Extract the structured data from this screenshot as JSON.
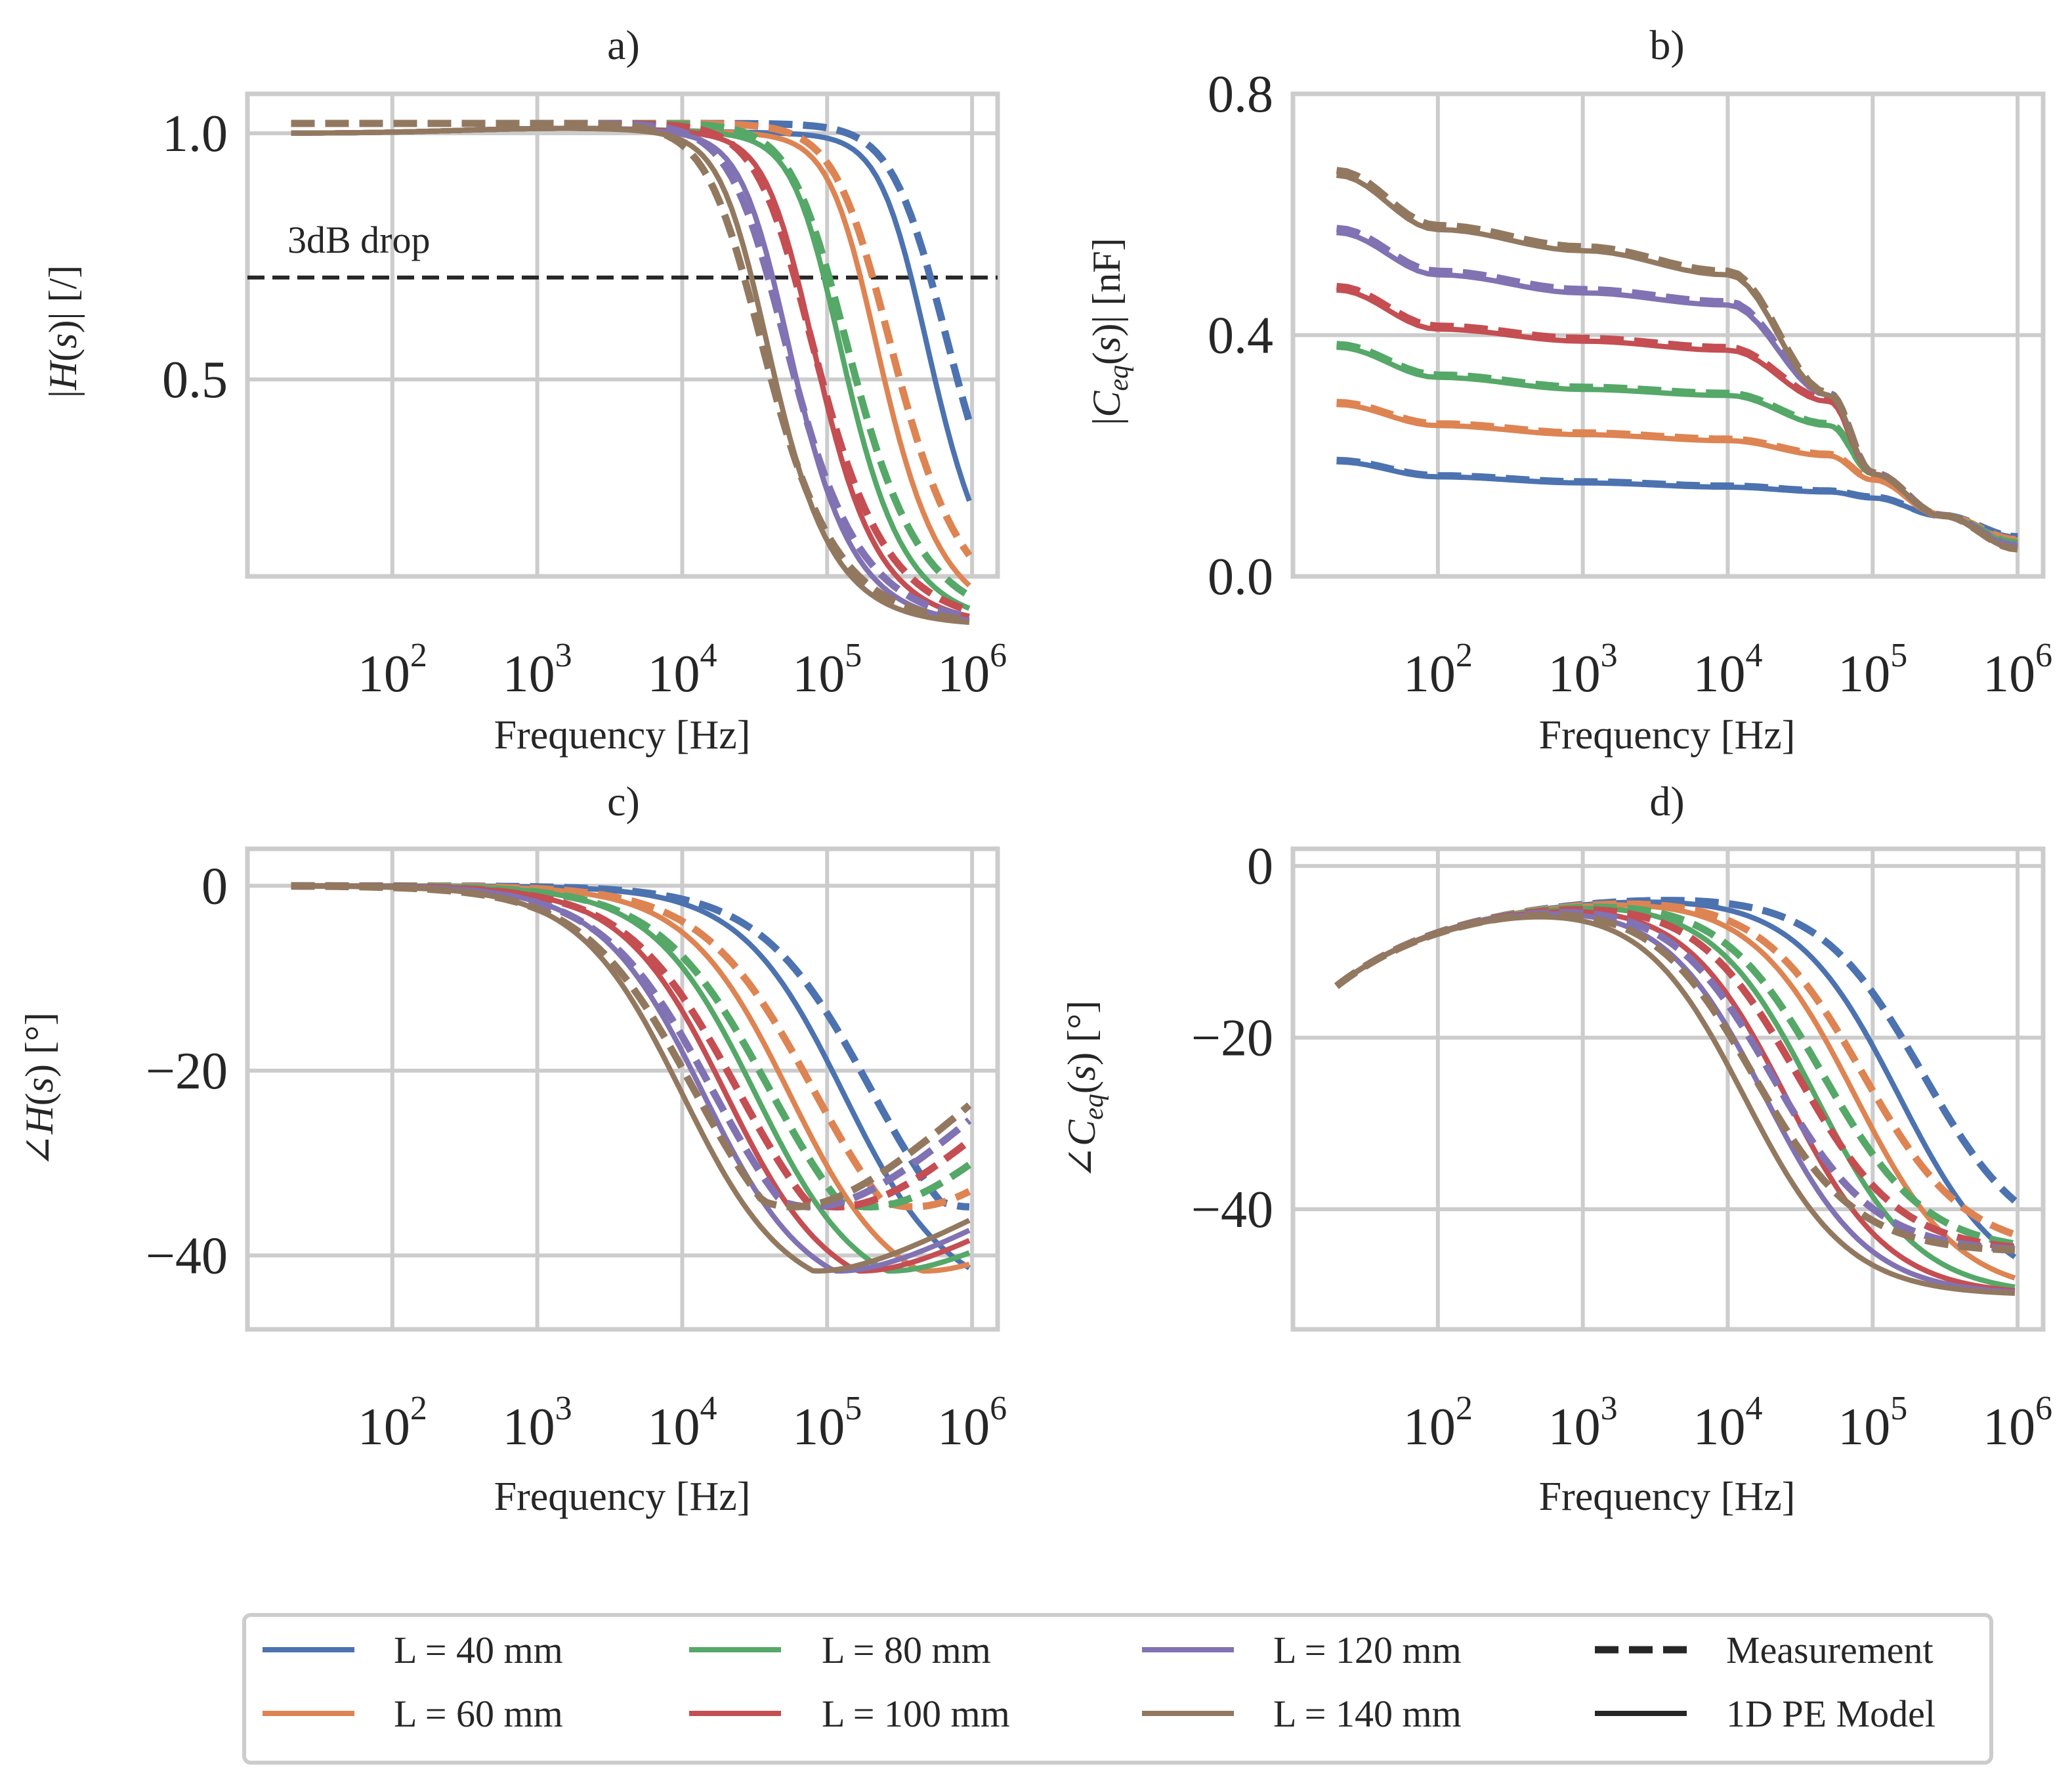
{
  "chart_data": [
    {
      "panel": "a)",
      "type": "line",
      "title": "a)",
      "xlabel": "Frequency [Hz]",
      "ylabel": "|H(s)| [/]",
      "xscale": "log",
      "xlim": [
        10,
        1500000
      ],
      "ylim": [
        0.1,
        1.08
      ],
      "x_ticks": [
        100,
        1000,
        10000,
        100000,
        1000000
      ],
      "x_tick_labels": [
        "10^2",
        "10^3",
        "10^4",
        "10^5",
        "10^6"
      ],
      "y_ticks": [
        0.5,
        1.0
      ],
      "y_tick_labels": [
        "0.5",
        "1.0"
      ],
      "grid": true,
      "annotations": [
        {
          "text": "3dB drop",
          "hline_y": 0.707
        }
      ],
      "model_fc": [
        {
          "name": "L = 40 mm",
          "fc": 380000
        },
        {
          "name": "L = 60 mm",
          "fc": 170000
        },
        {
          "name": "L = 80 mm",
          "fc": 95000
        },
        {
          "name": "L = 100 mm",
          "fc": 62000
        },
        {
          "name": "L = 120 mm",
          "fc": 42000
        },
        {
          "name": "L = 140 mm",
          "fc": 30000
        }
      ],
      "measurement_fc": [
        {
          "name": "L = 40 mm",
          "fc": 500000
        },
        {
          "name": "L = 60 mm",
          "fc": 200000
        },
        {
          "name": "L = 80 mm",
          "fc": 100000
        },
        {
          "name": "L = 100 mm",
          "fc": 58000
        },
        {
          "name": "L = 120 mm",
          "fc": 38000
        },
        {
          "name": "L = 140 mm",
          "fc": 26000
        }
      ]
    },
    {
      "panel": "b)",
      "type": "line",
      "title": "b)",
      "xlabel": "Frequency [Hz]",
      "ylabel": "|Ceq(s)| [nF]",
      "xscale": "log",
      "xlim": [
        10,
        1500000
      ],
      "ylim": [
        0.0,
        0.8
      ],
      "x_ticks": [
        100,
        1000,
        10000,
        100000,
        1000000
      ],
      "x_tick_labels": [
        "10^2",
        "10^3",
        "10^4",
        "10^5",
        "10^6"
      ],
      "y_ticks": [
        0.0,
        0.4,
        0.8
      ],
      "y_tick_labels": [
        "0.0",
        "0.4",
        "0.8"
      ],
      "grid": true,
      "series": [
        {
          "name": "L = 40 mm",
          "x": [
            20,
            100,
            1000,
            10000,
            50000,
            100000,
            300000,
            1000000
          ],
          "y": [
            0.19,
            0.165,
            0.155,
            0.148,
            0.14,
            0.13,
            0.1,
            0.065
          ]
        },
        {
          "name": "L = 60 mm",
          "x": [
            20,
            100,
            1000,
            10000,
            50000,
            100000,
            300000,
            1000000
          ],
          "y": [
            0.285,
            0.25,
            0.235,
            0.225,
            0.2,
            0.16,
            0.1,
            0.06
          ]
        },
        {
          "name": "L = 80 mm",
          "x": [
            20,
            100,
            1000,
            10000,
            50000,
            100000,
            300000,
            1000000
          ],
          "y": [
            0.38,
            0.33,
            0.31,
            0.3,
            0.25,
            0.17,
            0.1,
            0.055
          ]
        },
        {
          "name": "L = 100 mm",
          "x": [
            20,
            100,
            1000,
            10000,
            50000,
            100000,
            300000,
            1000000
          ],
          "y": [
            0.475,
            0.41,
            0.39,
            0.375,
            0.29,
            0.17,
            0.1,
            0.05
          ]
        },
        {
          "name": "L = 120 mm",
          "x": [
            20,
            100,
            1000,
            10000,
            50000,
            100000,
            300000,
            1000000
          ],
          "y": [
            0.57,
            0.5,
            0.47,
            0.45,
            0.3,
            0.17,
            0.1,
            0.05
          ]
        },
        {
          "name": "L = 140 mm",
          "x": [
            20,
            100,
            1000,
            10000,
            50000,
            100000,
            300000,
            1000000
          ],
          "y": [
            0.665,
            0.575,
            0.54,
            0.5,
            0.3,
            0.17,
            0.1,
            0.045
          ]
        }
      ]
    },
    {
      "panel": "c)",
      "type": "line",
      "title": "c)",
      "xlabel": "Frequency [Hz]",
      "ylabel": "∠H(s) [°]",
      "xscale": "log",
      "xlim": [
        10,
        1500000
      ],
      "ylim": [
        -48,
        4
      ],
      "x_ticks": [
        100,
        1000,
        10000,
        100000,
        1000000
      ],
      "x_tick_labels": [
        "10^2",
        "10^3",
        "10^4",
        "10^5",
        "10^6"
      ],
      "y_ticks": [
        -40,
        -20,
        0
      ],
      "y_tick_labels": [
        "−40",
        "−20",
        "0"
      ],
      "grid": true
    },
    {
      "panel": "d)",
      "type": "line",
      "title": "d)",
      "xlabel": "Frequency [Hz]",
      "ylabel": "∠Ceq(s) [°]",
      "xscale": "log",
      "xlim": [
        10,
        1500000
      ],
      "ylim": [
        -54,
        2
      ],
      "x_ticks": [
        100,
        1000,
        10000,
        100000,
        1000000
      ],
      "x_tick_labels": [
        "10^2",
        "10^3",
        "10^4",
        "10^5",
        "10^6"
      ],
      "y_ticks": [
        -40,
        -20,
        0
      ],
      "y_tick_labels": [
        "−40",
        "−20",
        "0"
      ],
      "grid": true
    }
  ],
  "legend": {
    "placement": "bottom",
    "entries": [
      {
        "label": "L = 40 mm",
        "color": "#4c72b0",
        "style": "solid"
      },
      {
        "label": "L = 60 mm",
        "color": "#dd8452",
        "style": "solid"
      },
      {
        "label": "L = 80 mm",
        "color": "#55a868",
        "style": "solid"
      },
      {
        "label": "L = 100 mm",
        "color": "#c44e52",
        "style": "solid"
      },
      {
        "label": "L = 120 mm",
        "color": "#8172b3",
        "style": "solid"
      },
      {
        "label": "L = 140 mm",
        "color": "#937860",
        "style": "solid"
      },
      {
        "label": "Measurement",
        "color": "#262626",
        "style": "dashed"
      },
      {
        "label": "1D PE Model",
        "color": "#262626",
        "style": "solid"
      }
    ]
  },
  "colors": [
    "#4c72b0",
    "#dd8452",
    "#55a868",
    "#c44e52",
    "#8172b3",
    "#937860"
  ]
}
